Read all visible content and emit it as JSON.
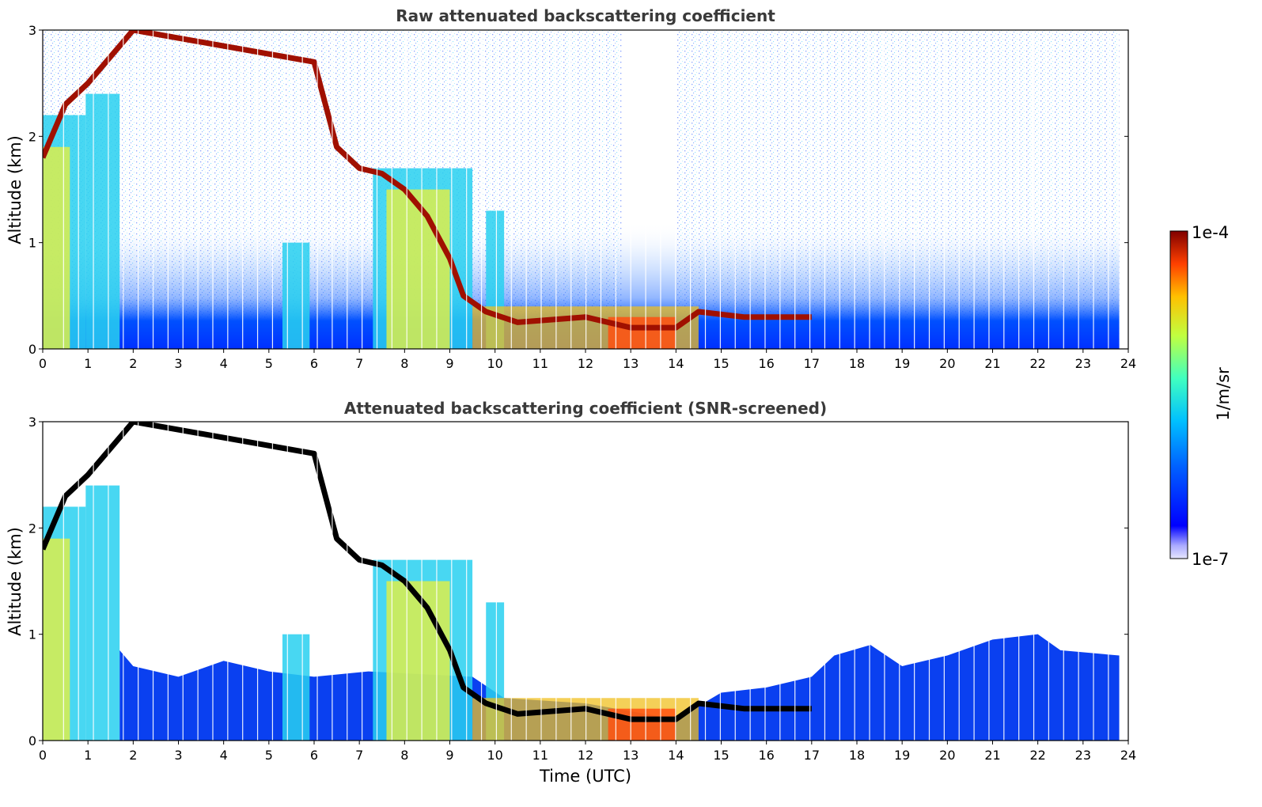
{
  "chart_data": [
    {
      "type": "heatmap",
      "title": "Raw attenuated backscattering coefficient",
      "xlabel": "",
      "ylabel": "Altitude (km)",
      "xlim": [
        0,
        24
      ],
      "ylim": [
        0,
        3
      ],
      "xticks": [
        "0",
        "1",
        "2",
        "3",
        "4",
        "5",
        "6",
        "7",
        "8",
        "9",
        "10",
        "11",
        "12",
        "13",
        "14",
        "15",
        "16",
        "17",
        "18",
        "19",
        "20",
        "21",
        "22",
        "23",
        "24"
      ],
      "yticks": [
        "0",
        "1",
        "2",
        "3"
      ],
      "grid": false,
      "features": {
        "cloud_layer_km": [
          [
            0.0,
            1.8
          ],
          [
            0.5,
            2.3
          ],
          [
            1.0,
            2.5
          ],
          [
            1.6,
            2.8
          ],
          [
            2.0,
            3.0
          ],
          [
            6.0,
            2.7
          ],
          [
            6.5,
            1.9
          ],
          [
            7.0,
            1.7
          ],
          [
            7.5,
            1.65
          ],
          [
            8.0,
            1.5
          ],
          [
            8.5,
            1.25
          ],
          [
            9.0,
            0.85
          ],
          [
            9.3,
            0.5
          ],
          [
            9.8,
            0.35
          ],
          [
            10.5,
            0.25
          ],
          [
            12.0,
            0.3
          ],
          [
            13.0,
            0.2
          ],
          [
            14.0,
            0.2
          ],
          [
            14.5,
            0.35
          ],
          [
            15.5,
            0.3
          ],
          [
            16.5,
            0.3
          ],
          [
            17.0,
            0.3
          ]
        ]
      }
    },
    {
      "type": "heatmap",
      "title": "Attenuated backscattering coefficient (SNR-screened)",
      "xlabel": "Time (UTC)",
      "ylabel": "Altitude (km)",
      "xlim": [
        0,
        24
      ],
      "ylim": [
        0,
        3
      ],
      "xticks": [
        "0",
        "1",
        "2",
        "3",
        "4",
        "5",
        "6",
        "7",
        "8",
        "9",
        "10",
        "11",
        "12",
        "13",
        "14",
        "15",
        "16",
        "17",
        "18",
        "19",
        "20",
        "21",
        "22",
        "23",
        "24"
      ],
      "yticks": [
        "0",
        "1",
        "2",
        "3"
      ],
      "grid": false,
      "features": {
        "boundary_layer_top_km": [
          [
            1.7,
            0.85
          ],
          [
            2.0,
            0.7
          ],
          [
            3.0,
            0.6
          ],
          [
            4.0,
            0.75
          ],
          [
            5.0,
            0.65
          ],
          [
            6.0,
            0.6
          ],
          [
            7.2,
            0.65
          ],
          [
            9.5,
            0.6
          ],
          [
            10.2,
            0.4
          ],
          [
            12.0,
            0.35
          ],
          [
            14.0,
            0.2
          ],
          [
            15.0,
            0.45
          ],
          [
            16.0,
            0.5
          ],
          [
            17.0,
            0.6
          ],
          [
            17.5,
            0.8
          ],
          [
            18.3,
            0.9
          ],
          [
            19.0,
            0.7
          ],
          [
            20.0,
            0.8
          ],
          [
            21.0,
            0.95
          ],
          [
            22.0,
            1.0
          ],
          [
            22.5,
            0.85
          ],
          [
            23.8,
            0.8
          ]
        ]
      }
    }
  ],
  "colorbar": {
    "label": "1/m/sr",
    "max_label": "1e-4",
    "min_label": "1e-7",
    "colors": [
      "#e6e6ff",
      "#aaaaff",
      "#0000ff",
      "#0060ff",
      "#00c0ff",
      "#40ffc0",
      "#c0ff40",
      "#ffc000",
      "#ff4000",
      "#800000"
    ]
  }
}
